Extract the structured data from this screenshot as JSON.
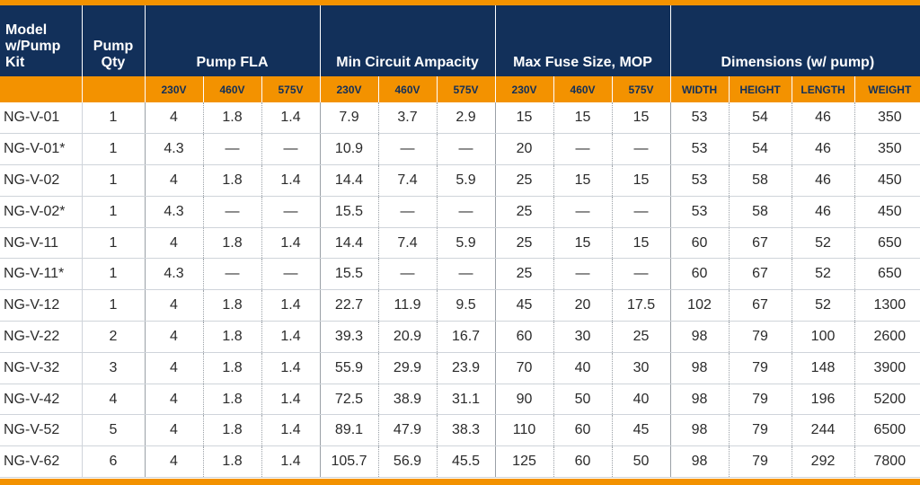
{
  "header": {
    "model": "Model w/Pump Kit",
    "model_lines": [
      "Model",
      "w/Pump",
      "Kit"
    ],
    "qty_lines": [
      "Pump",
      "Qty"
    ],
    "groups": [
      "Pump FLA",
      "Min Circuit Ampacity",
      "Max Fuse Size, MOP",
      "Dimensions (w/ pump)"
    ],
    "sub": [
      "230V",
      "460V",
      "575V",
      "230V",
      "460V",
      "575V",
      "230V",
      "460V",
      "575V",
      "WIDTH",
      "HEIGHT",
      "LENGTH",
      "WEIGHT"
    ]
  },
  "rows": [
    [
      "NG-V-01",
      "1",
      "4",
      "1.8",
      "1.4",
      "7.9",
      "3.7",
      "2.9",
      "15",
      "15",
      "15",
      "53",
      "54",
      "46",
      "350"
    ],
    [
      "NG-V-01*",
      "1",
      "4.3",
      "—",
      "—",
      "10.9",
      "—",
      "—",
      "20",
      "—",
      "—",
      "53",
      "54",
      "46",
      "350"
    ],
    [
      "NG-V-02",
      "1",
      "4",
      "1.8",
      "1.4",
      "14.4",
      "7.4",
      "5.9",
      "25",
      "15",
      "15",
      "53",
      "58",
      "46",
      "450"
    ],
    [
      "NG-V-02*",
      "1",
      "4.3",
      "—",
      "—",
      "15.5",
      "—",
      "—",
      "25",
      "—",
      "—",
      "53",
      "58",
      "46",
      "450"
    ],
    [
      "NG-V-11",
      "1",
      "4",
      "1.8",
      "1.4",
      "14.4",
      "7.4",
      "5.9",
      "25",
      "15",
      "15",
      "60",
      "67",
      "52",
      "650"
    ],
    [
      "NG-V-11*",
      "1",
      "4.3",
      "—",
      "—",
      "15.5",
      "—",
      "—",
      "25",
      "—",
      "—",
      "60",
      "67",
      "52",
      "650"
    ],
    [
      "NG-V-12",
      "1",
      "4",
      "1.8",
      "1.4",
      "22.7",
      "11.9",
      "9.5",
      "45",
      "20",
      "17.5",
      "102",
      "67",
      "52",
      "1300"
    ],
    [
      "NG-V-22",
      "2",
      "4",
      "1.8",
      "1.4",
      "39.3",
      "20.9",
      "16.7",
      "60",
      "30",
      "25",
      "98",
      "79",
      "100",
      "2600"
    ],
    [
      "NG-V-32",
      "3",
      "4",
      "1.8",
      "1.4",
      "55.9",
      "29.9",
      "23.9",
      "70",
      "40",
      "30",
      "98",
      "79",
      "148",
      "3900"
    ],
    [
      "NG-V-42",
      "4",
      "4",
      "1.8",
      "1.4",
      "72.5",
      "38.9",
      "31.1",
      "90",
      "50",
      "40",
      "98",
      "79",
      "196",
      "5200"
    ],
    [
      "NG-V-52",
      "5",
      "4",
      "1.8",
      "1.4",
      "89.1",
      "47.9",
      "38.3",
      "110",
      "60",
      "45",
      "98",
      "79",
      "244",
      "6500"
    ],
    [
      "NG-V-62",
      "6",
      "4",
      "1.8",
      "1.4",
      "105.7",
      "56.9",
      "45.5",
      "125",
      "60",
      "50",
      "98",
      "79",
      "292",
      "7800"
    ]
  ],
  "colors": {
    "header_bg": "#12305a",
    "accent": "#f39200",
    "text": "#2b2b2b"
  }
}
